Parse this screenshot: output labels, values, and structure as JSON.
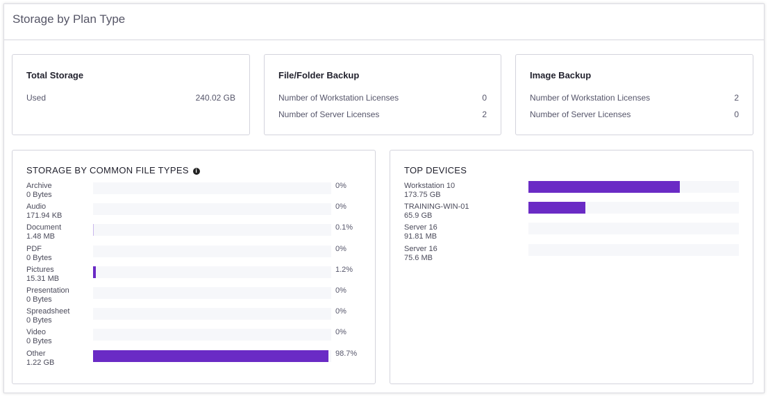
{
  "title": "Storage by Plan Type",
  "accent": "#6a2bc5",
  "total_storage": {
    "title": "Total Storage",
    "label": "Used",
    "value": "240.02 GB"
  },
  "file_folder": {
    "title": "File/Folder Backup",
    "rows": [
      {
        "label": "Number of Workstation Licenses",
        "value": "0"
      },
      {
        "label": "Number of Server Licenses",
        "value": "2"
      }
    ]
  },
  "image_backup": {
    "title": "Image Backup",
    "rows": [
      {
        "label": "Number of Workstation Licenses",
        "value": "2"
      },
      {
        "label": "Number of Server Licenses",
        "value": "0"
      }
    ]
  },
  "file_types": {
    "title": "STORAGE BY COMMON FILE TYPES",
    "info_icon": "info-icon",
    "items": [
      {
        "name": "Archive",
        "size": "0 Bytes",
        "pct": "0%",
        "fraction": 0
      },
      {
        "name": "Audio",
        "size": "171.94 KB",
        "pct": "0%",
        "fraction": 0
      },
      {
        "name": "Document",
        "size": "1.48 MB",
        "pct": "0.1%",
        "fraction": 0.001
      },
      {
        "name": "PDF",
        "size": "0 Bytes",
        "pct": "0%",
        "fraction": 0
      },
      {
        "name": "Pictures",
        "size": "15.31 MB",
        "pct": "1.2%",
        "fraction": 0.012
      },
      {
        "name": "Presentation",
        "size": "0 Bytes",
        "pct": "0%",
        "fraction": 0
      },
      {
        "name": "Spreadsheet",
        "size": "0 Bytes",
        "pct": "0%",
        "fraction": 0
      },
      {
        "name": "Video",
        "size": "0 Bytes",
        "pct": "0%",
        "fraction": 0
      },
      {
        "name": "Other",
        "size": "1.22 GB",
        "pct": "98.7%",
        "fraction": 0.987
      }
    ]
  },
  "top_devices": {
    "title": "TOP DEVICES",
    "items": [
      {
        "name": "Workstation 10",
        "size": "173.75 GB",
        "fraction": 0.72
      },
      {
        "name": "TRAINING-WIN-01",
        "size": "65.9 GB",
        "fraction": 0.27
      },
      {
        "name": "Server 16",
        "size": "91.81 MB",
        "fraction": 0
      },
      {
        "name": "Server 16",
        "size": "75.6 MB",
        "fraction": 0
      }
    ]
  }
}
